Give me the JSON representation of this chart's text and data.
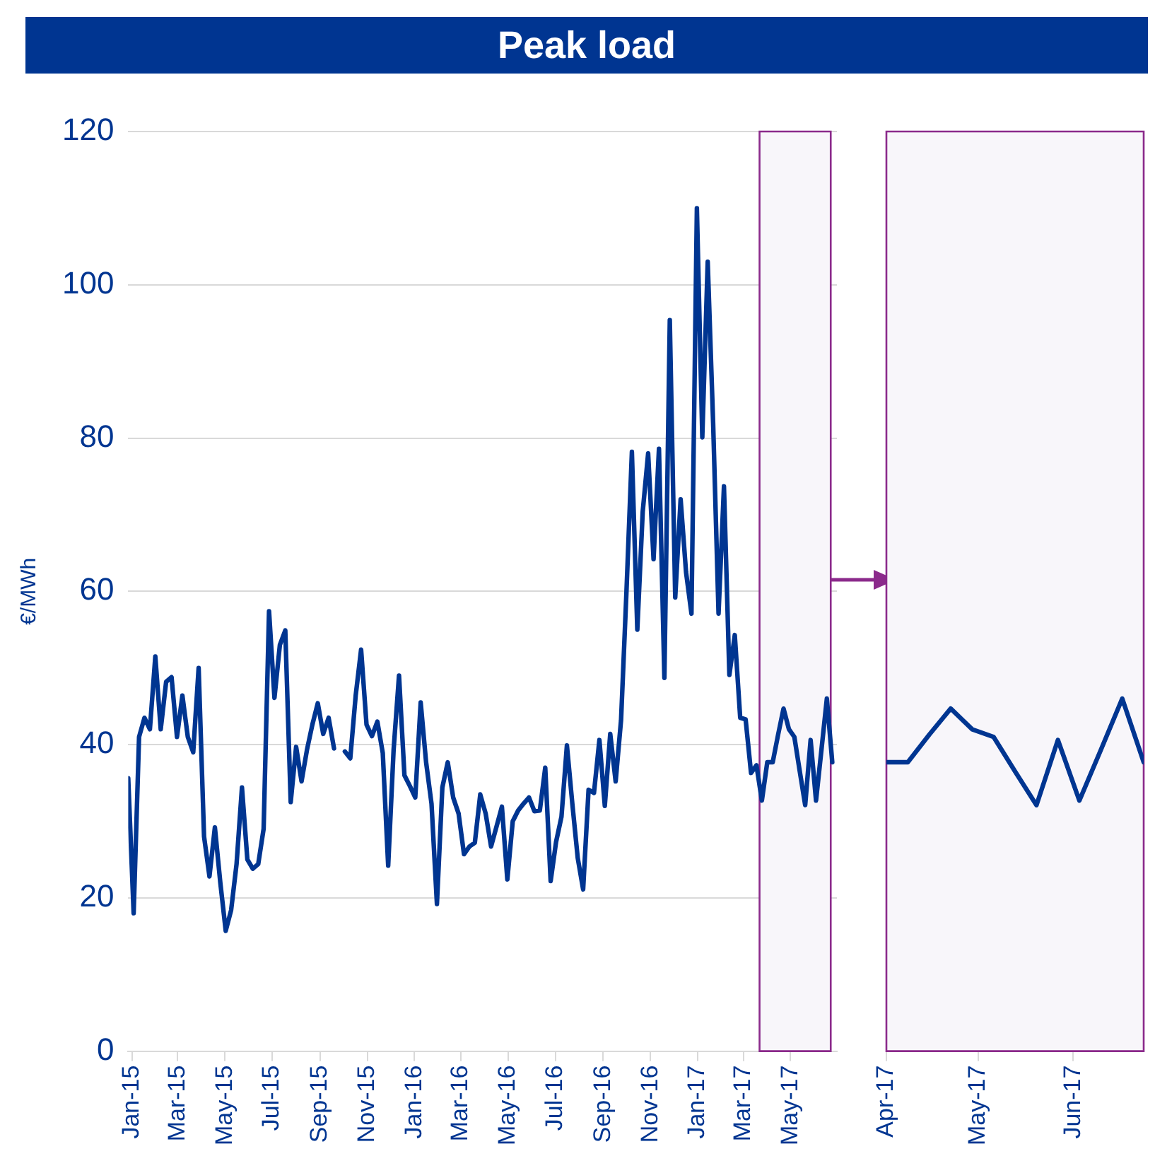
{
  "chart_data": [
    {
      "type": "line",
      "title": "Peak load",
      "ylabel": "€/MWh",
      "xlim": [
        "2014-12-27",
        "2017-06-30"
      ],
      "ylim": [
        0,
        120
      ],
      "yticks": [
        0,
        20,
        40,
        60,
        80,
        100,
        120
      ],
      "xticks": [
        {
          "value": "2015-01-01",
          "label": "Jan-15"
        },
        {
          "value": "2015-03-01",
          "label": "Mar-15"
        },
        {
          "value": "2015-05-01",
          "label": "May-15"
        },
        {
          "value": "2015-07-01",
          "label": "Jul-15"
        },
        {
          "value": "2015-09-01",
          "label": "Sep-15"
        },
        {
          "value": "2015-11-01",
          "label": "Nov-15"
        },
        {
          "value": "2016-01-01",
          "label": "Jan-16"
        },
        {
          "value": "2016-03-01",
          "label": "Mar-16"
        },
        {
          "value": "2016-05-01",
          "label": "May-16"
        },
        {
          "value": "2016-07-01",
          "label": "Jul-16"
        },
        {
          "value": "2016-09-01",
          "label": "Sep-16"
        },
        {
          "value": "2016-11-01",
          "label": "Nov-16"
        },
        {
          "value": "2017-01-01",
          "label": "Jan-17"
        },
        {
          "value": "2017-03-01",
          "label": "Mar-17"
        },
        {
          "value": "2017-05-01",
          "label": "May-17"
        }
      ],
      "grid": "y",
      "marker": "none",
      "line_style": "solid",
      "bands": [
        {
          "axis": "x",
          "from": "2017-03-22",
          "to": "2017-06-22",
          "color": "#f8f6fa"
        }
      ],
      "series": [
        {
          "color": "#003591",
          "x": [
            "2014-12-27",
            "2015-01-03",
            "2015-01-10",
            "2015-01-17",
            "2015-01-24",
            "2015-01-31",
            "2015-02-07",
            "2015-02-14",
            "2015-02-21",
            "2015-02-28",
            "2015-03-07",
            "2015-03-14",
            "2015-03-21",
            "2015-03-28",
            "2015-04-04",
            "2015-04-11",
            "2015-04-18",
            "2015-04-25",
            "2015-05-02",
            "2015-05-09",
            "2015-05-16",
            "2015-05-23",
            "2015-05-30",
            "2015-06-06",
            "2015-06-13",
            "2015-06-20",
            "2015-06-27",
            "2015-07-04",
            "2015-07-11",
            "2015-07-18",
            "2015-07-25",
            "2015-08-01",
            "2015-08-08",
            "2015-08-15",
            "2015-08-22",
            "2015-08-29",
            "2015-09-05",
            "2015-09-12",
            "2015-09-19",
            "2015-09-26",
            "2015-10-03",
            "2015-10-10",
            "2015-10-17",
            "2015-10-24",
            "2015-10-31",
            "2015-11-07",
            "2015-11-14",
            "2015-11-21",
            "2015-11-28",
            "2015-12-05",
            "2015-12-12",
            "2015-12-19",
            "2015-12-26",
            "2016-01-02",
            "2016-01-09",
            "2016-01-16",
            "2016-01-23",
            "2016-01-30",
            "2016-02-06",
            "2016-02-13",
            "2016-02-20",
            "2016-02-27",
            "2016-03-05",
            "2016-03-12",
            "2016-03-19",
            "2016-03-26",
            "2016-04-02",
            "2016-04-09",
            "2016-04-16",
            "2016-04-23",
            "2016-04-30",
            "2016-05-07",
            "2016-05-14",
            "2016-05-21",
            "2016-05-28",
            "2016-06-04",
            "2016-06-11",
            "2016-06-18",
            "2016-06-25",
            "2016-07-02",
            "2016-07-09",
            "2016-07-16",
            "2016-07-23",
            "2016-07-30",
            "2016-08-06",
            "2016-08-13",
            "2016-08-20",
            "2016-08-27",
            "2016-09-03",
            "2016-09-10",
            "2016-09-17",
            "2016-09-24",
            "2016-10-01",
            "2016-10-08",
            "2016-10-15",
            "2016-10-22",
            "2016-10-29",
            "2016-11-05",
            "2016-11-12",
            "2016-11-19",
            "2016-11-26",
            "2016-12-03",
            "2016-12-10",
            "2016-12-17",
            "2016-12-24",
            "2016-12-31",
            "2017-01-07",
            "2017-01-14",
            "2017-01-21",
            "2017-01-28",
            "2017-02-04",
            "2017-02-11",
            "2017-02-18",
            "2017-02-25",
            "2017-03-04",
            "2017-03-11",
            "2017-03-18",
            "2017-03-25",
            "2017-04-01",
            "2017-04-08",
            "2017-04-15",
            "2017-04-22",
            "2017-04-29",
            "2017-05-06",
            "2017-05-13",
            "2017-05-20",
            "2017-05-27",
            "2017-06-03",
            "2017-06-10",
            "2017-06-17",
            "2017-06-24"
          ],
          "values": [
            35.6,
            18,
            41,
            43.5,
            42,
            51.5,
            42,
            48.2,
            48.8,
            41,
            46.4,
            41,
            39,
            50,
            28,
            22.8,
            29.2,
            22,
            15.7,
            18.4,
            24.4,
            34.4,
            25,
            23.8,
            24.4,
            29,
            57.4,
            46.1,
            53,
            54.9,
            32.5,
            39.7,
            35.2,
            39.3,
            42.6,
            45.4,
            41.4,
            43.5,
            39.5,
            null,
            39.1,
            38.2,
            46.4,
            52.4,
            42.6,
            41.1,
            43,
            38.9,
            24.2,
            39.3,
            49,
            36,
            34.6,
            33.1,
            45.5,
            37.7,
            32.3,
            19.2,
            34.4,
            37.7,
            33.1,
            31,
            25.7,
            26.7,
            27.2,
            33.5,
            31,
            26.7,
            29.3,
            31.9,
            22.4,
            30,
            31.4,
            32.3,
            33.1,
            31.3,
            31.4,
            37,
            22.2,
            27.3,
            30.6,
            39.9,
            32.3,
            25.2,
            21.1,
            34.1,
            33.7,
            40.6,
            32,
            41.4,
            35.2,
            43.2,
            60,
            78.2,
            55,
            70.4,
            78,
            64.2,
            78.6,
            48.7,
            95.4,
            59.2,
            72,
            62.5,
            57.1,
            110,
            80.1,
            103,
            82,
            57.1,
            73.7,
            49.1,
            54.3,
            43.5,
            43.3,
            36.3,
            37.3,
            32.7,
            37.7,
            37.7,
            41.3,
            44.7,
            42,
            41,
            36.5,
            32.1,
            40.6,
            32.7,
            39.3,
            46,
            37.7
          ]
        }
      ]
    },
    {
      "type": "line",
      "xlim": [
        "2017-04-01",
        "2017-06-24"
      ],
      "ylim": [
        0,
        120
      ],
      "yticks": [
        0,
        20,
        40,
        60,
        80,
        100,
        120
      ],
      "xticks": [
        {
          "value": "2017-04-01",
          "label": "Apr-17"
        },
        {
          "value": "2017-05-01",
          "label": "May-17"
        },
        {
          "value": "2017-06-01",
          "label": "Jun-17"
        }
      ],
      "tick_labels": "x",
      "grid": "y",
      "marker": "none",
      "line_style": "solid",
      "bands": [
        {
          "axis": "x",
          "from": "2017-04-01",
          "to": "2017-06-24",
          "color": "#f8f6fa"
        }
      ],
      "series": [
        {
          "color": "#003591",
          "x": [
            "2017-04-01",
            "2017-04-08",
            "2017-04-15",
            "2017-04-22",
            "2017-04-29",
            "2017-05-06",
            "2017-05-13",
            "2017-05-20",
            "2017-05-27",
            "2017-06-03",
            "2017-06-10",
            "2017-06-17",
            "2017-06-24"
          ],
          "values": [
            37.7,
            37.7,
            41.3,
            44.7,
            42,
            41,
            36.5,
            32.1,
            40.6,
            32.7,
            39.3,
            46,
            37.7
          ]
        }
      ]
    }
  ]
}
